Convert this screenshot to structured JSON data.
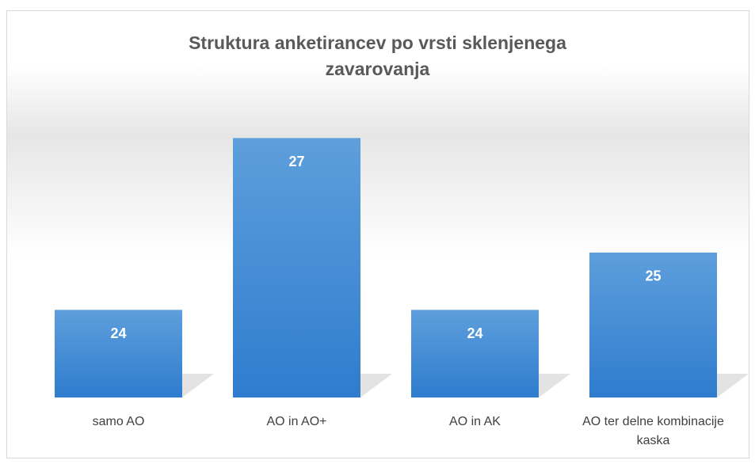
{
  "chart_data": {
    "type": "bar",
    "title": "Struktura anketirancev po vrsti sklenjenega zavarovanja",
    "categories": [
      "samo AO",
      "AO in AO+",
      "AO in AK",
      "AO ter delne kombinacije kaska"
    ],
    "values": [
      24,
      27,
      24,
      25
    ],
    "color": "#4a8fd6",
    "ylim": [
      22.47,
      28
    ],
    "grid": false
  }
}
